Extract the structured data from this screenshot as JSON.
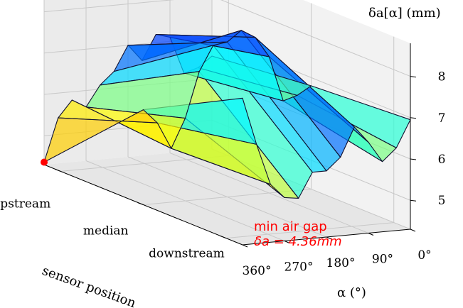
{
  "chart_data": {
    "type": "surface3d",
    "zlabel": "δa[α] (mm)",
    "xlabel": "α (°)",
    "ylabel": "sensor position",
    "x_tick_labels": [
      "0°",
      "90°",
      "180°",
      "270°",
      "360°"
    ],
    "y_tick_labels": [
      "downstream",
      "median",
      "upstream"
    ],
    "z_ticks": [
      5,
      6,
      7,
      8
    ],
    "zlim": [
      4.3,
      8.8
    ],
    "colormap": "jet",
    "grid": true,
    "alpha_deg": [
      0,
      30,
      60,
      90,
      120,
      150,
      180,
      210,
      240,
      270,
      300,
      330,
      360
    ],
    "series": [
      {
        "name": "downstream",
        "values": [
          6.95,
          6.3,
          6.0,
          6.5,
          6.9,
          6.2,
          5.9,
          5.9,
          5.3,
          5.35,
          5.7,
          6.7,
          7.85
        ]
      },
      {
        "name": "median",
        "values": [
          6.8,
          6.6,
          6.5,
          7.6,
          8.1,
          8.3,
          8.05,
          8.0,
          7.4,
          6.3,
          5.6,
          6.25,
          6.6
        ]
      },
      {
        "name": "upstream",
        "values": [
          6.55,
          6.3,
          6.2,
          7.1,
          7.2,
          6.6,
          7.0,
          6.4,
          6.1,
          5.6,
          5.8,
          5.4,
          4.36
        ]
      }
    ],
    "annotation": {
      "line1": "min air gap",
      "line2": "δa = 4.36mm",
      "alpha": 360,
      "position": "upstream",
      "value": 4.36,
      "color": "#ff0000"
    }
  }
}
